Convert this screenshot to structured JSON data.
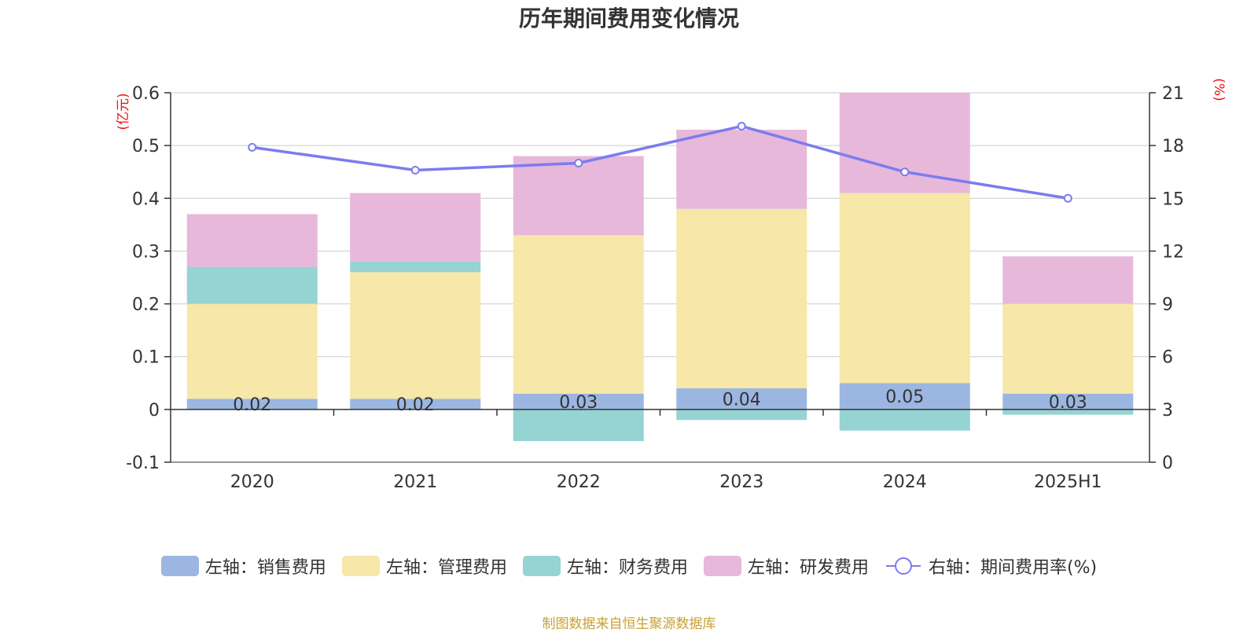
{
  "title": "历年期间费用变化情况",
  "source_note": "制图数据来自恒生聚源数据库",
  "colors": {
    "sales": "#9bb6e0",
    "admin": "#f7e7a8",
    "finance": "#96d3d3",
    "rd": "#e7b8da",
    "line": "#7b7cf0",
    "unit": "#ee1111",
    "grid": "#cccccc",
    "axis": "#333333",
    "text": "#333333"
  },
  "chart_data": {
    "type": "bar",
    "stacked": true,
    "categories": [
      "2020",
      "2021",
      "2022",
      "2023",
      "2024",
      "2025H1"
    ],
    "series": [
      {
        "name": "左轴：销售费用",
        "axis": "left",
        "values": [
          0.02,
          0.02,
          0.03,
          0.04,
          0.05,
          0.03
        ],
        "labels": [
          "0.02",
          "0.02",
          "0.03",
          "0.04",
          "0.05",
          "0.03"
        ]
      },
      {
        "name": "左轴：管理费用",
        "axis": "left",
        "values": [
          0.18,
          0.24,
          0.3,
          0.34,
          0.36,
          0.17
        ]
      },
      {
        "name": "左轴：财务费用",
        "axis": "left",
        "values": [
          0.07,
          0.02,
          -0.06,
          -0.02,
          -0.04,
          -0.01
        ]
      },
      {
        "name": "左轴：研发费用",
        "axis": "left",
        "values": [
          0.1,
          0.13,
          0.15,
          0.15,
          0.19,
          0.09
        ]
      },
      {
        "name": "右轴：期间费用率(%)",
        "axis": "right",
        "type": "line",
        "values": [
          17.9,
          16.6,
          17.0,
          19.1,
          16.5,
          15.0
        ]
      }
    ],
    "y_left": {
      "unit": "(亿元)",
      "ylim": [
        -0.1,
        0.6
      ],
      "ticks": [
        "-0.1",
        "0",
        "0.1",
        "0.2",
        "0.3",
        "0.4",
        "0.5",
        "0.6"
      ]
    },
    "y_right": {
      "unit": "(%)",
      "ylim": [
        0,
        21
      ],
      "ticks": [
        "0",
        "3",
        "6",
        "9",
        "12",
        "15",
        "18",
        "21"
      ]
    },
    "grid": true,
    "legend_position": "bottom"
  }
}
